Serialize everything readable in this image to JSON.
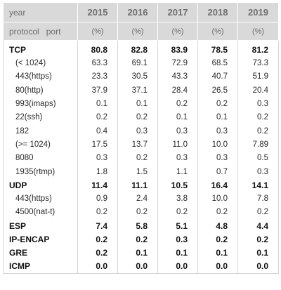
{
  "header": {
    "label_year": "year",
    "label_protocol": "protocol",
    "label_port": "port",
    "years": [
      "2015",
      "2016",
      "2017",
      "2018",
      "2019"
    ],
    "unit": "(%)"
  },
  "rows": [
    {
      "name": "TCP",
      "main": true,
      "values": [
        "80.8",
        "82.8",
        "83.9",
        "78.5",
        "81.2"
      ]
    },
    {
      "name": "(< 1024)",
      "main": false,
      "values": [
        "63.3",
        "69.1",
        "72.9",
        "68.5",
        "73.3"
      ]
    },
    {
      "name": "443(https)",
      "main": false,
      "values": [
        "23.3",
        "30.5",
        "43.3",
        "40.7",
        "51.9"
      ]
    },
    {
      "name": "80(http)",
      "main": false,
      "values": [
        "37.9",
        "37.1",
        "28.4",
        "26.5",
        "20.4"
      ]
    },
    {
      "name": "993(imaps)",
      "main": false,
      "values": [
        "0.1",
        "0.1",
        "0.2",
        "0.2",
        "0.3"
      ]
    },
    {
      "name": "22(ssh)",
      "main": false,
      "values": [
        "0.2",
        "0.2",
        "0.1",
        "0.1",
        "0.2"
      ]
    },
    {
      "name": "182",
      "main": false,
      "values": [
        "0.4",
        "0.3",
        "0.3",
        "0.3",
        "0.2"
      ]
    },
    {
      "name": "(>= 1024)",
      "main": false,
      "values": [
        "17.5",
        "13.7",
        "11.0",
        "10.0",
        "7.89"
      ]
    },
    {
      "name": "8080",
      "main": false,
      "values": [
        "0.3",
        "0.2",
        "0.3",
        "0.3",
        "0.5"
      ]
    },
    {
      "name": "1935(rtmp)",
      "main": false,
      "values": [
        "1.8",
        "1.5",
        "1.1",
        "0.7",
        "0.3"
      ]
    },
    {
      "name": "UDP",
      "main": true,
      "values": [
        "11.4",
        "11.1",
        "10.5",
        "16.4",
        "14.1"
      ]
    },
    {
      "name": "443(https)",
      "main": false,
      "values": [
        "0.9",
        "2.4",
        "3.8",
        "10.0",
        "7.8"
      ]
    },
    {
      "name": "4500(nat-t)",
      "main": false,
      "values": [
        "0.2",
        "0.2",
        "0.2",
        "0.2",
        "0.2"
      ]
    },
    {
      "name": "ESP",
      "main": true,
      "values": [
        "7.4",
        "5.8",
        "5.1",
        "4.8",
        "4.4"
      ]
    },
    {
      "name": "IP-ENCAP",
      "main": true,
      "values": [
        "0.2",
        "0.2",
        "0.3",
        "0.2",
        "0.2"
      ]
    },
    {
      "name": "GRE",
      "main": true,
      "values": [
        "0.2",
        "0.1",
        "0.1",
        "0.1",
        "0.1"
      ]
    },
    {
      "name": "ICMP",
      "main": true,
      "values": [
        "0.0",
        "0.0",
        "0.0",
        "0.0",
        "0.0"
      ]
    }
  ]
}
